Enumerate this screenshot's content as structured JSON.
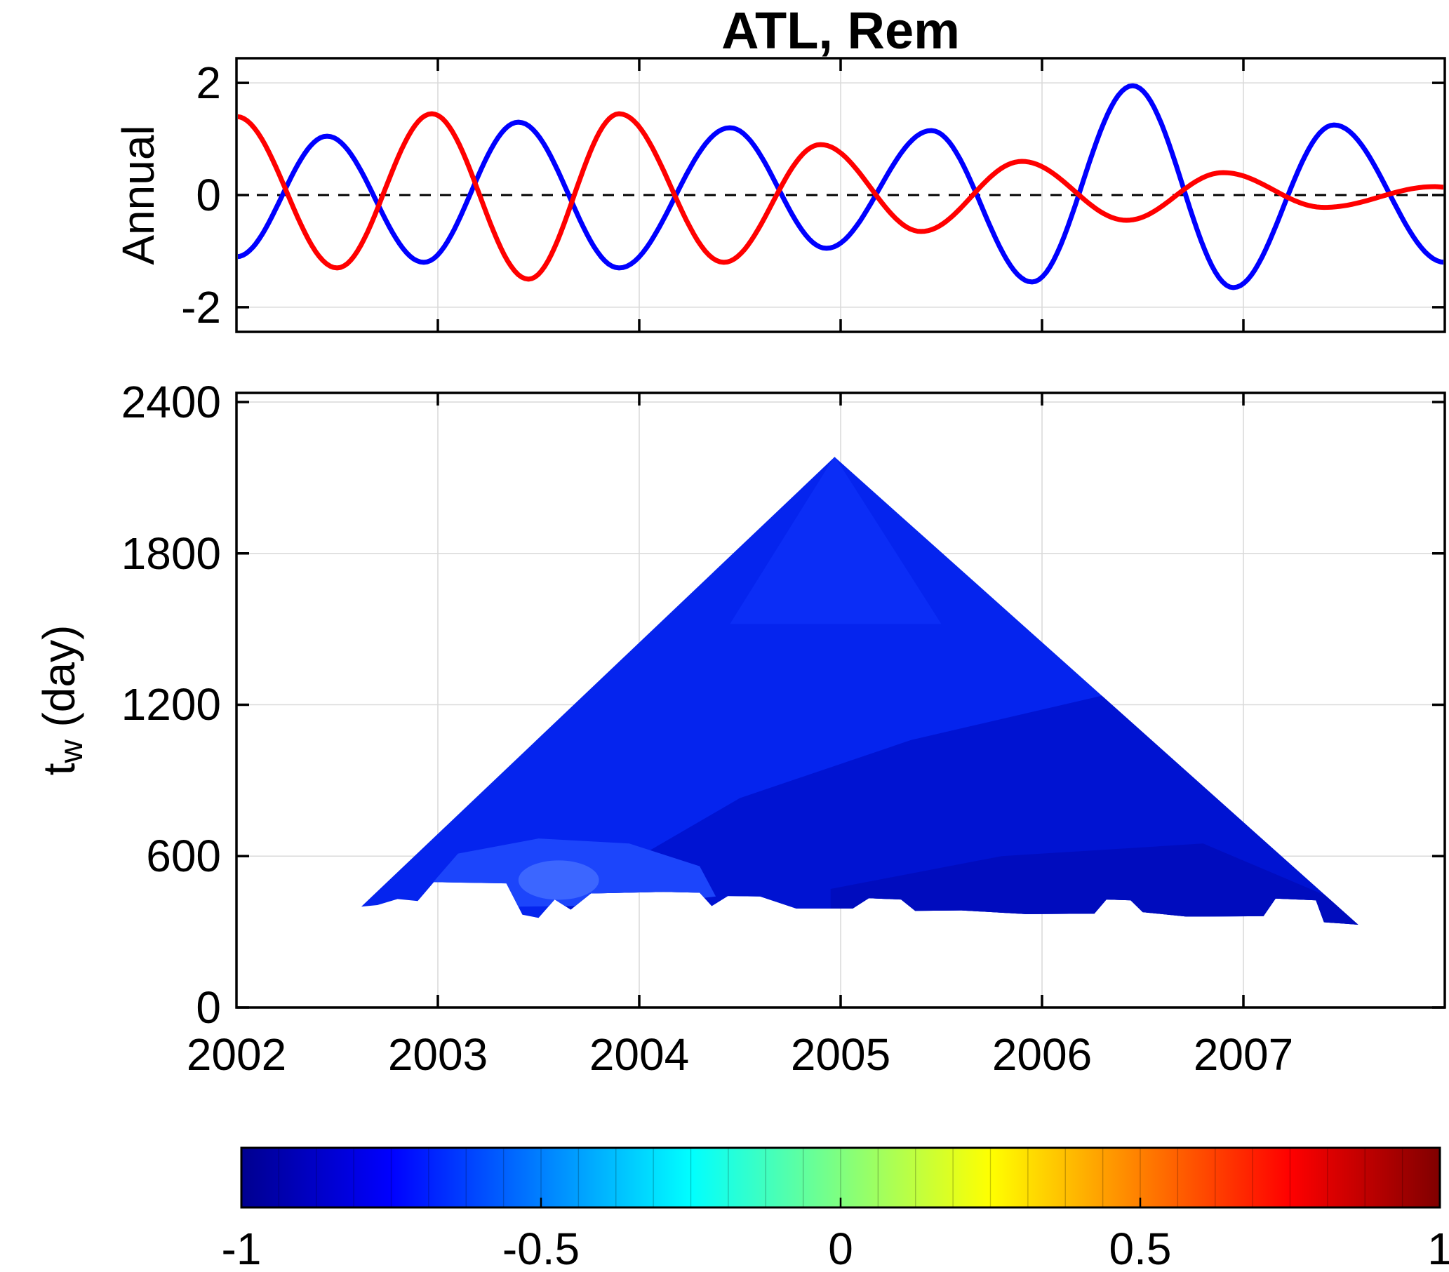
{
  "figure": {
    "background": "#ffffff"
  },
  "chart_data": [
    {
      "type": "line",
      "panel": "top",
      "title": "ATL, Rem",
      "ylabel": "Annual",
      "xlim": [
        2002,
        2008
      ],
      "ylim": [
        -2.44,
        2.44
      ],
      "yticks": [
        2,
        0,
        -2
      ],
      "grid_years": [
        2003,
        2004,
        2005,
        2006,
        2007
      ],
      "grid_yvals": [
        2,
        -2
      ],
      "zero_line": {
        "y": 0,
        "style": "dashed",
        "color": "#000000"
      },
      "note": "Two annual-period oscillations; curves reconstructed by cosine interpolation through listed extrema [year, value]",
      "series": [
        {
          "name": "annual-component-blue",
          "color": "#0000ff",
          "extrema": [
            [
              2002.0,
              -1.1
            ],
            [
              2002.45,
              1.05
            ],
            [
              2002.93,
              -1.2
            ],
            [
              2003.4,
              1.3
            ],
            [
              2003.9,
              -1.3
            ],
            [
              2004.45,
              1.2
            ],
            [
              2004.93,
              -0.95
            ],
            [
              2005.45,
              1.15
            ],
            [
              2005.95,
              -1.55
            ],
            [
              2006.45,
              1.95
            ],
            [
              2006.95,
              -1.65
            ],
            [
              2007.45,
              1.25
            ],
            [
              2008.0,
              -1.2
            ]
          ]
        },
        {
          "name": "annual-component-red",
          "color": "#ff0000",
          "extrema": [
            [
              2002.0,
              1.4
            ],
            [
              2002.5,
              -1.3
            ],
            [
              2002.97,
              1.45
            ],
            [
              2003.45,
              -1.5
            ],
            [
              2003.9,
              1.45
            ],
            [
              2004.42,
              -1.2
            ],
            [
              2004.9,
              0.9
            ],
            [
              2005.4,
              -0.65
            ],
            [
              2005.9,
              0.6
            ],
            [
              2006.42,
              -0.45
            ],
            [
              2006.9,
              0.4
            ],
            [
              2007.4,
              -0.22
            ],
            [
              2007.95,
              0.15
            ],
            [
              2008.0,
              0.14
            ]
          ]
        }
      ]
    },
    {
      "type": "heatmap",
      "panel": "bottom",
      "ylabel_parts": {
        "base": "t",
        "sub": "w",
        "rest": " (day)"
      },
      "xticks": [
        2002,
        2003,
        2004,
        2005,
        2006,
        2007
      ],
      "yticks": [
        0,
        600,
        1200,
        1800,
        2400
      ],
      "grid_years": [
        2003,
        2004,
        2005,
        2006,
        2007
      ],
      "grid_yvals": [
        600,
        1200,
        1800,
        2400
      ],
      "xlim": [
        2002,
        2008
      ],
      "ylim": [
        0,
        2436
      ],
      "note": "Triangular running-correlation field; values are strongly negative (about -0.6 to -0.9) everywhere, rendered in blues",
      "colorbar": {
        "range": [
          -1,
          1
        ],
        "ticks": [
          -1,
          -0.5,
          0,
          0.5,
          1
        ],
        "colormap": "jet",
        "segments": 32,
        "stops": [
          [
            0,
            "#00008f"
          ],
          [
            0.125,
            "#0000ff"
          ],
          [
            0.375,
            "#00ffff"
          ],
          [
            0.625,
            "#ffff00"
          ],
          [
            0.875,
            "#ff0000"
          ],
          [
            1,
            "#800000"
          ]
        ]
      },
      "triangle_outline": [
        [
          2004.97,
          2182
        ],
        [
          2007.57,
          328
        ],
        [
          2007.4,
          338
        ],
        [
          2007.36,
          425
        ],
        [
          2007.16,
          432
        ],
        [
          2007.1,
          362
        ],
        [
          2006.72,
          360
        ],
        [
          2006.5,
          378
        ],
        [
          2006.44,
          425
        ],
        [
          2006.32,
          428
        ],
        [
          2006.26,
          372
        ],
        [
          2005.92,
          370
        ],
        [
          2005.6,
          385
        ],
        [
          2005.37,
          383
        ],
        [
          2005.3,
          428
        ],
        [
          2005.14,
          433
        ],
        [
          2005.06,
          392
        ],
        [
          2004.78,
          392
        ],
        [
          2004.6,
          440
        ],
        [
          2004.44,
          442
        ],
        [
          2004.36,
          402
        ],
        [
          2004.3,
          455
        ],
        [
          2004.12,
          458
        ],
        [
          2003.76,
          452
        ],
        [
          2003.66,
          388
        ],
        [
          2003.58,
          428
        ],
        [
          2003.5,
          355
        ],
        [
          2003.42,
          368
        ],
        [
          2003.34,
          492
        ],
        [
          2002.98,
          497
        ],
        [
          2002.9,
          422
        ],
        [
          2002.8,
          430
        ],
        [
          2002.7,
          406
        ],
        [
          2002.62,
          400
        ]
      ],
      "regions": [
        {
          "value": -0.76,
          "color": "#0524ee",
          "shape": "base"
        },
        {
          "value": -0.73,
          "color": "#0b2df6",
          "polygon": [
            [
              2004.97,
              2185
            ],
            [
              2004.45,
              1520
            ],
            [
              2005.5,
              1520
            ]
          ]
        },
        {
          "value": -0.84,
          "color": "#0013d2",
          "polygon": [
            [
              2003.55,
              250
            ],
            [
              2003.55,
              390
            ],
            [
              2004.5,
              830
            ],
            [
              2005.35,
              1060
            ],
            [
              2006.32,
              1240
            ],
            [
              2008.0,
              250
            ]
          ]
        },
        {
          "value": -0.89,
          "color": "#000cbe",
          "polygon": [
            [
              2004.95,
              250
            ],
            [
              2004.95,
              470
            ],
            [
              2005.8,
              600
            ],
            [
              2006.8,
              650
            ],
            [
              2007.45,
              430
            ],
            [
              2007.7,
              330
            ],
            [
              2007.7,
              250
            ]
          ]
        },
        {
          "value": -0.66,
          "color": "#1c45fb",
          "polygon": [
            [
              2002.98,
              430
            ],
            [
              2002.98,
              500
            ],
            [
              2003.1,
              610
            ],
            [
              2003.5,
              670
            ],
            [
              2003.95,
              650
            ],
            [
              2004.3,
              560
            ],
            [
              2004.38,
              440
            ],
            [
              2004.0,
              405
            ],
            [
              2003.4,
              400
            ]
          ]
        },
        {
          "value": -0.58,
          "color": "#3c66ff",
          "ellipse": {
            "cx": 2003.6,
            "cy": 505,
            "rx": 0.2,
            "ry": 78
          }
        }
      ]
    }
  ]
}
